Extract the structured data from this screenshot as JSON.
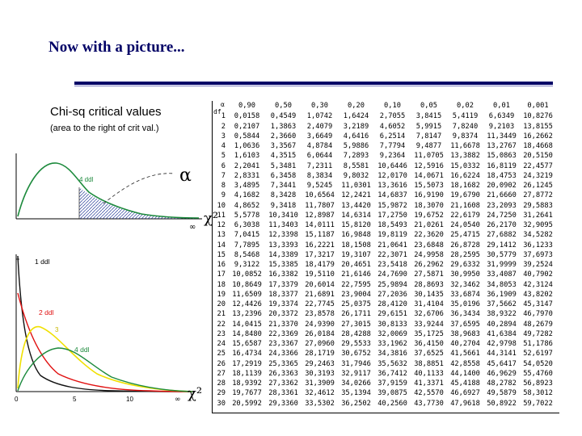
{
  "slide": {
    "title": "Now with a picture..."
  },
  "panel": {
    "title": "Chi-sq critical values",
    "subtitle": "(area to the right of crit val.)",
    "upper_plot": {
      "ddl_label": "4 ddl",
      "alpha_label": "α",
      "infinity_label": "∞",
      "axis_label": "χ²"
    },
    "lower_plot": {
      "curve_labels": [
        "1 ddl",
        "2 ddl",
        "3",
        "4 ddl"
      ],
      "x_ticks": [
        "0",
        "5",
        "10",
        "∞"
      ],
      "axis_label": "χ²"
    }
  },
  "table": {
    "df_header": "df",
    "alpha_header": "α",
    "headers": [
      "0,90",
      "0,50",
      "0,30",
      "0,20",
      "0,10",
      "0,05",
      "0,02",
      "0,01",
      "0,001"
    ],
    "rows": [
      [
        "1",
        "0,0158",
        "0,4549",
        "1,0742",
        "1,6424",
        "2,7055",
        "3,8415",
        "5,4119",
        "6,6349",
        "10,8276"
      ],
      [
        "2",
        "0,2107",
        "1,3863",
        "2,4079",
        "3,2189",
        "4,6052",
        "5,9915",
        "7,8240",
        "9,2103",
        "13,8155"
      ],
      [
        "3",
        "0,5844",
        "2,3660",
        "3,6649",
        "4,6416",
        "6,2514",
        "7,8147",
        "9,8374",
        "11,3449",
        "16,2662"
      ],
      [
        "4",
        "1,0636",
        "3,3567",
        "4,8784",
        "5,9886",
        "7,7794",
        "9,4877",
        "11,6678",
        "13,2767",
        "18,4668"
      ],
      [
        "5",
        "1,6103",
        "4,3515",
        "6,0644",
        "7,2893",
        "9,2364",
        "11,0705",
        "13,3882",
        "15,0863",
        "20,5150"
      ],
      [
        "6",
        "2,2041",
        "5,3481",
        "7,2311",
        "8,5581",
        "10,6446",
        "12,5916",
        "15,0332",
        "16,8119",
        "22,4577"
      ],
      [
        "7",
        "2,8331",
        "6,3458",
        "8,3834",
        "9,8032",
        "12,0170",
        "14,0671",
        "16,6224",
        "18,4753",
        "24,3219"
      ],
      [
        "8",
        "3,4895",
        "7,3441",
        "9,5245",
        "11,0301",
        "13,3616",
        "15,5073",
        "18,1682",
        "20,0902",
        "26,1245"
      ],
      [
        "9",
        "4,1682",
        "8,3428",
        "10,6564",
        "12,2421",
        "14,6837",
        "16,9190",
        "19,6790",
        "21,6660",
        "27,8772"
      ],
      [
        "10",
        "4,8652",
        "9,3418",
        "11,7807",
        "13,4420",
        "15,9872",
        "18,3070",
        "21,1608",
        "23,2093",
        "29,5883"
      ],
      [
        "11",
        "5,5778",
        "10,3410",
        "12,8987",
        "14,6314",
        "17,2750",
        "19,6752",
        "22,6179",
        "24,7250",
        "31,2641"
      ],
      [
        "12",
        "6,3038",
        "11,3403",
        "14,0111",
        "15,8120",
        "18,5493",
        "21,0261",
        "24,0540",
        "26,2170",
        "32,9095"
      ],
      [
        "13",
        "7,0415",
        "12,3398",
        "15,1187",
        "16,9848",
        "19,8119",
        "22,3620",
        "25,4715",
        "27,6882",
        "34,5282"
      ],
      [
        "14",
        "7,7895",
        "13,3393",
        "16,2221",
        "18,1508",
        "21,0641",
        "23,6848",
        "26,8728",
        "29,1412",
        "36,1233"
      ],
      [
        "15",
        "8,5468",
        "14,3389",
        "17,3217",
        "19,3107",
        "22,3071",
        "24,9958",
        "28,2595",
        "30,5779",
        "37,6973"
      ],
      [
        "16",
        "9,3122",
        "15,3385",
        "18,4179",
        "20,4651",
        "23,5418",
        "26,2962",
        "29,6332",
        "31,9999",
        "39,2524"
      ],
      [
        "17",
        "10,0852",
        "16,3382",
        "19,5110",
        "21,6146",
        "24,7690",
        "27,5871",
        "30,9950",
        "33,4087",
        "40,7902"
      ],
      [
        "18",
        "10,8649",
        "17,3379",
        "20,6014",
        "22,7595",
        "25,9894",
        "28,8693",
        "32,3462",
        "34,8053",
        "42,3124"
      ],
      [
        "19",
        "11,6509",
        "18,3377",
        "21,6891",
        "23,9004",
        "27,2036",
        "30,1435",
        "33,6874",
        "36,1909",
        "43,8202"
      ],
      [
        "20",
        "12,4426",
        "19,3374",
        "22,7745",
        "25,0375",
        "28,4120",
        "31,4104",
        "35,0196",
        "37,5662",
        "45,3147"
      ],
      [
        "21",
        "13,2396",
        "20,3372",
        "23,8578",
        "26,1711",
        "29,6151",
        "32,6706",
        "36,3434",
        "38,9322",
        "46,7970"
      ],
      [
        "22",
        "14,0415",
        "21,3370",
        "24,9390",
        "27,3015",
        "30,8133",
        "33,9244",
        "37,6595",
        "40,2894",
        "48,2679"
      ],
      [
        "23",
        "14,8480",
        "22,3369",
        "26,0184",
        "28,4288",
        "32,0069",
        "35,1725",
        "38,9683",
        "41,6384",
        "49,7282"
      ],
      [
        "24",
        "15,6587",
        "23,3367",
        "27,0960",
        "29,5533",
        "33,1962",
        "36,4150",
        "40,2704",
        "42,9798",
        "51,1786"
      ],
      [
        "25",
        "16,4734",
        "24,3366",
        "28,1719",
        "30,6752",
        "34,3816",
        "37,6525",
        "41,5661",
        "44,3141",
        "52,6197"
      ],
      [
        "26",
        "17,2919",
        "25,3365",
        "29,2463",
        "31,7946",
        "35,5632",
        "38,8851",
        "42,8558",
        "45,6417",
        "54,0520"
      ],
      [
        "27",
        "18,1139",
        "26,3363",
        "30,3193",
        "32,9117",
        "36,7412",
        "40,1133",
        "44,1400",
        "46,9629",
        "55,4760"
      ],
      [
        "28",
        "18,9392",
        "27,3362",
        "31,3909",
        "34,0266",
        "37,9159",
        "41,3371",
        "45,4188",
        "48,2782",
        "56,8923"
      ],
      [
        "29",
        "19,7677",
        "28,3361",
        "32,4612",
        "35,1394",
        "39,0875",
        "42,5570",
        "46,6927",
        "49,5879",
        "58,3012"
      ],
      [
        "30",
        "20,5992",
        "29,3360",
        "33,5302",
        "36,2502",
        "40,2560",
        "43,7730",
        "47,9618",
        "50,8922",
        "59,7022"
      ]
    ]
  }
}
